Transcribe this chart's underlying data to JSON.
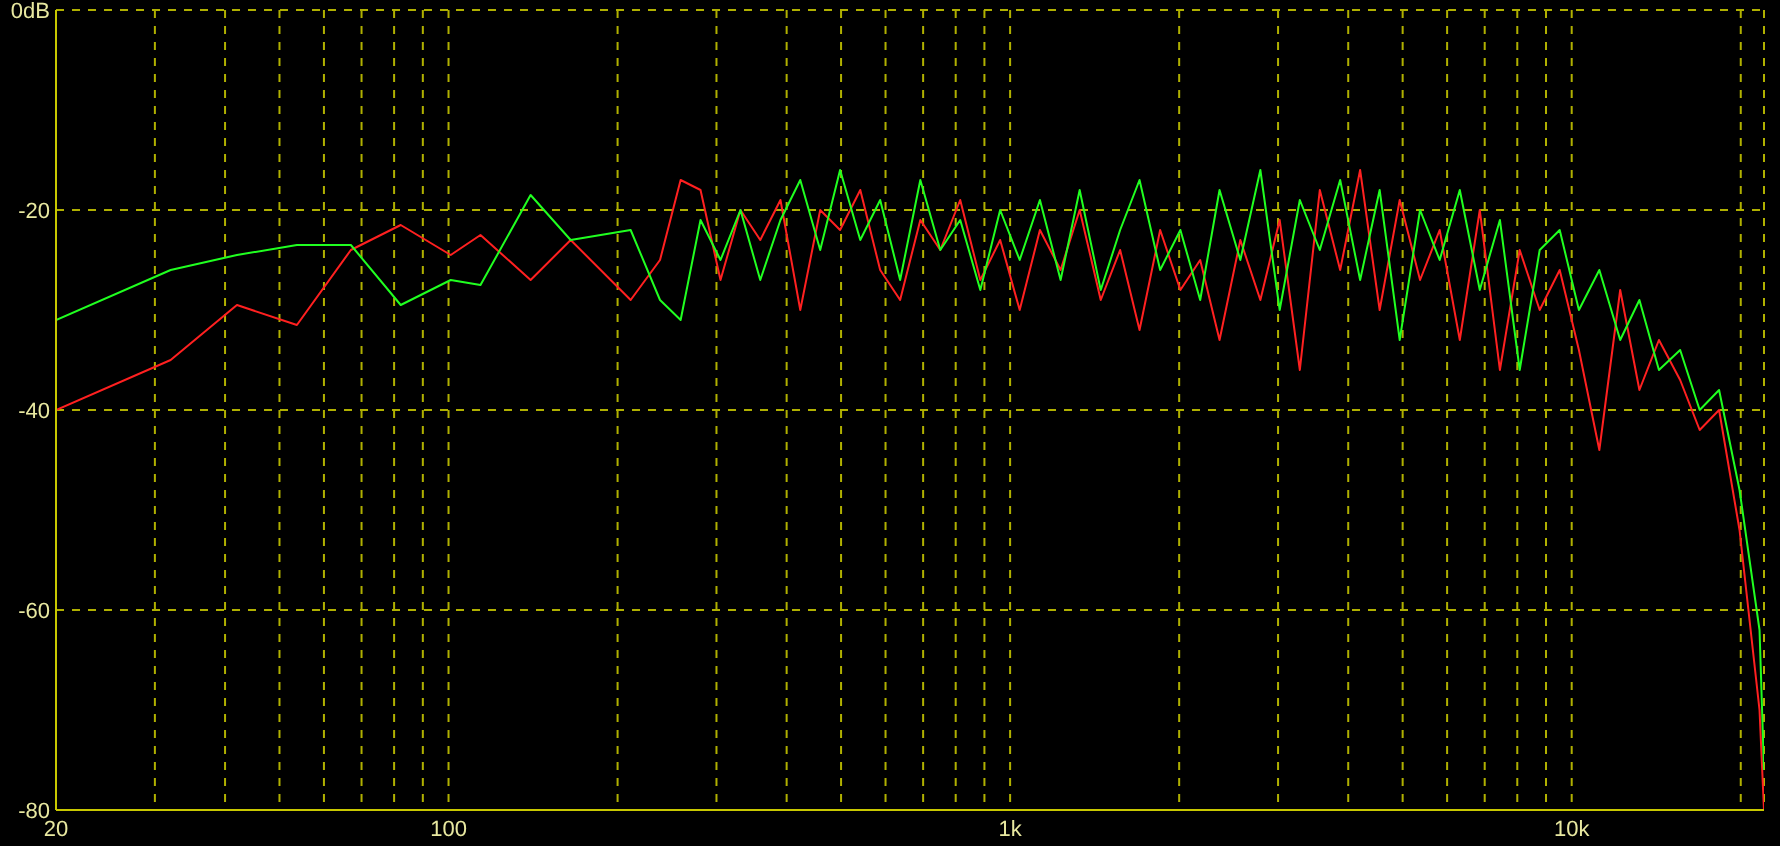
{
  "chart_data": {
    "type": "line",
    "log": "x",
    "grid": true,
    "line_style": "solid",
    "marker": "none",
    "x": [
      20,
      32,
      42,
      53.7,
      67,
      82.2,
      100.9,
      114,
      140,
      165,
      211,
      238,
      259,
      281,
      305,
      331,
      359,
      390,
      423,
      459,
      498,
      541,
      587,
      637,
      692,
      751,
      815,
      885,
      960,
      1040,
      1130,
      1230,
      1330,
      1450,
      1570,
      1700,
      1850,
      2010,
      2180,
      2360,
      2570,
      2790,
      3020,
      3280,
      3560,
      3870,
      4200,
      4550,
      4940,
      5370,
      5820,
      6320,
      6860,
      7450,
      8080,
      8770,
      9520,
      10300,
      11200,
      12200,
      13200,
      14300,
      15600,
      16900,
      18300,
      19900,
      21600,
      22000
    ],
    "series": [
      {
        "color": "#ff2020",
        "values": [
          -40,
          -35,
          -29.5,
          -31.5,
          -24,
          -21.5,
          -24.5,
          -22.5,
          -27,
          -23,
          -29,
          -25,
          -17,
          -18,
          -27,
          -20,
          -23,
          -19,
          -30,
          -20,
          -22,
          -18,
          -26,
          -29,
          -21,
          -24,
          -19,
          -27,
          -23,
          -30,
          -22,
          -26,
          -20,
          -29,
          -24,
          -32,
          -22,
          -28,
          -25,
          -33,
          -23,
          -29,
          -21,
          -36,
          -18,
          -26,
          -16,
          -30,
          -19,
          -27,
          -22,
          -33,
          -20,
          -36,
          -24,
          -30,
          -26,
          -34,
          -44,
          -28,
          -38,
          -33,
          -37,
          -42,
          -40,
          -52,
          -70,
          -80
        ]
      },
      {
        "color": "#20ff20",
        "values": [
          -31,
          -26,
          -24.5,
          -23.5,
          -23.5,
          -29.5,
          -27,
          -27.5,
          -18.5,
          -23,
          -22,
          -29,
          -31,
          -21,
          -25,
          -20,
          -27,
          -21,
          -17,
          -24,
          -16,
          -23,
          -19,
          -27,
          -17,
          -24,
          -21,
          -28,
          -20,
          -25,
          -19,
          -27,
          -18,
          -28,
          -22,
          -17,
          -26,
          -22,
          -29,
          -18,
          -25,
          -16,
          -30,
          -19,
          -24,
          -17,
          -27,
          -18,
          -33,
          -20,
          -25,
          -18,
          -28,
          -21,
          -36,
          -24,
          -22,
          -30,
          -26,
          -33,
          -29,
          -36,
          -34,
          -40,
          -38,
          -48,
          -62,
          -76
        ]
      }
    ],
    "xlim": [
      20,
      22000
    ],
    "xticks": [
      20,
      {
        "value": 30,
        "label": null
      },
      {
        "value": 40,
        "label": null
      },
      {
        "value": 50,
        "label": null
      },
      {
        "value": 60,
        "label": null
      },
      {
        "value": 70,
        "label": null
      },
      {
        "value": 80,
        "label": null
      },
      {
        "value": 90,
        "label": null
      },
      100,
      {
        "value": 200,
        "label": null
      },
      {
        "value": 300,
        "label": null
      },
      {
        "value": 400,
        "label": null
      },
      {
        "value": 500,
        "label": null
      },
      {
        "value": 600,
        "label": null
      },
      {
        "value": 700,
        "label": null
      },
      {
        "value": 800,
        "label": null
      },
      {
        "value": 900,
        "label": null
      },
      {
        "value": 1000,
        "label": "1k"
      },
      {
        "value": 2000,
        "label": null
      },
      {
        "value": 3000,
        "label": null
      },
      {
        "value": 4000,
        "label": null
      },
      {
        "value": 5000,
        "label": null
      },
      {
        "value": 6000,
        "label": null
      },
      {
        "value": 7000,
        "label": null
      },
      {
        "value": 8000,
        "label": null
      },
      {
        "value": 9000,
        "label": null
      },
      {
        "value": 10000,
        "label": "10k"
      },
      {
        "value": 20000,
        "label": null
      }
    ],
    "ylim": [
      -80,
      0
    ],
    "yticks": [
      -80,
      -60,
      -40,
      -20,
      {
        "value": 0,
        "label": "0dB"
      }
    ]
  }
}
